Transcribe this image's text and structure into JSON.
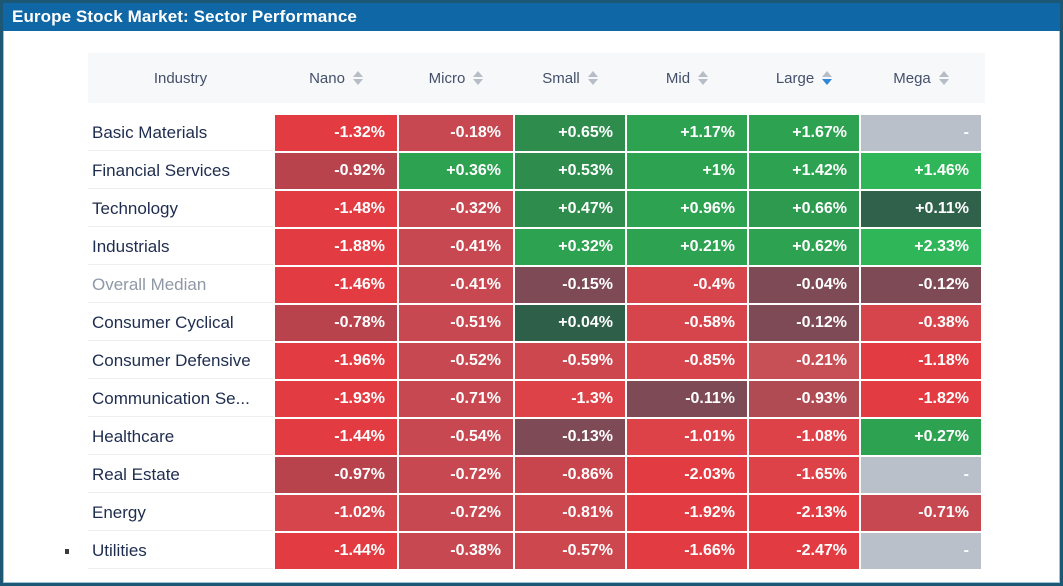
{
  "title": "Europe Stock Market: Sector Performance",
  "table": {
    "industry_header": "Industry",
    "columns": [
      {
        "label": "Nano",
        "sort": "none"
      },
      {
        "label": "Micro",
        "sort": "none"
      },
      {
        "label": "Small",
        "sort": "none"
      },
      {
        "label": "Mid",
        "sort": "none"
      },
      {
        "label": "Large",
        "sort": "desc"
      },
      {
        "label": "Mega",
        "sort": "none"
      }
    ],
    "rows": [
      {
        "industry": "Basic Materials",
        "muted": false,
        "cells": [
          {
            "v": "-1.32%",
            "c": "#e23c42"
          },
          {
            "v": "-0.18%",
            "c": "#c74850"
          },
          {
            "v": "+0.65%",
            "c": "#2e8c4d"
          },
          {
            "v": "+1.17%",
            "c": "#2da251"
          },
          {
            "v": "+1.67%",
            "c": "#2da251"
          },
          {
            "v": "-",
            "c": "#b9c0ca"
          }
        ]
      },
      {
        "industry": "Financial Services",
        "muted": false,
        "cells": [
          {
            "v": "-0.92%",
            "c": "#b8434c"
          },
          {
            "v": "+0.36%",
            "c": "#2da251"
          },
          {
            "v": "+0.53%",
            "c": "#2e8c4d"
          },
          {
            "v": "+1%",
            "c": "#2da251"
          },
          {
            "v": "+1.42%",
            "c": "#2da251"
          },
          {
            "v": "+1.46%",
            "c": "#2eb658"
          }
        ]
      },
      {
        "industry": "Technology",
        "muted": false,
        "cells": [
          {
            "v": "-1.48%",
            "c": "#e23c42"
          },
          {
            "v": "-0.32%",
            "c": "#c74850"
          },
          {
            "v": "+0.47%",
            "c": "#2e8c4d"
          },
          {
            "v": "+0.96%",
            "c": "#2da251"
          },
          {
            "v": "+0.66%",
            "c": "#2d9a4f"
          },
          {
            "v": "+0.11%",
            "c": "#30614b"
          }
        ]
      },
      {
        "industry": "Industrials",
        "muted": false,
        "cells": [
          {
            "v": "-1.88%",
            "c": "#e23c42"
          },
          {
            "v": "-0.41%",
            "c": "#c74850"
          },
          {
            "v": "+0.32%",
            "c": "#2da251"
          },
          {
            "v": "+0.21%",
            "c": "#2da251"
          },
          {
            "v": "+0.62%",
            "c": "#2da251"
          },
          {
            "v": "+2.33%",
            "c": "#2eb658"
          }
        ]
      },
      {
        "industry": "Overall Median",
        "muted": true,
        "cells": [
          {
            "v": "-1.46%",
            "c": "#e23c42"
          },
          {
            "v": "-0.41%",
            "c": "#c74850"
          },
          {
            "v": "-0.15%",
            "c": "#7e4a55"
          },
          {
            "v": "-0.4%",
            "c": "#d6454c"
          },
          {
            "v": "-0.04%",
            "c": "#7e4a55"
          },
          {
            "v": "-0.12%",
            "c": "#7e4a55"
          }
        ]
      },
      {
        "industry": "Consumer Cyclical",
        "muted": false,
        "cells": [
          {
            "v": "-0.78%",
            "c": "#b8434c"
          },
          {
            "v": "-0.51%",
            "c": "#c74850"
          },
          {
            "v": "+0.04%",
            "c": "#2e6049"
          },
          {
            "v": "-0.58%",
            "c": "#d6454c"
          },
          {
            "v": "-0.12%",
            "c": "#7e4a55"
          },
          {
            "v": "-0.38%",
            "c": "#d6454c"
          }
        ]
      },
      {
        "industry": "Consumer Defensive",
        "muted": false,
        "cells": [
          {
            "v": "-1.96%",
            "c": "#e23c42"
          },
          {
            "v": "-0.52%",
            "c": "#c74850"
          },
          {
            "v": "-0.59%",
            "c": "#cd474e"
          },
          {
            "v": "-0.85%",
            "c": "#d6454c"
          },
          {
            "v": "-0.21%",
            "c": "#c74f56"
          },
          {
            "v": "-1.18%",
            "c": "#e23c42"
          }
        ]
      },
      {
        "industry": "Communication Se...",
        "muted": false,
        "cells": [
          {
            "v": "-1.93%",
            "c": "#e23c42"
          },
          {
            "v": "-0.71%",
            "c": "#c74850"
          },
          {
            "v": "-1.3%",
            "c": "#dd4248"
          },
          {
            "v": "-0.11%",
            "c": "#7e4a55"
          },
          {
            "v": "-0.93%",
            "c": "#b04a53"
          },
          {
            "v": "-1.82%",
            "c": "#e23c42"
          }
        ]
      },
      {
        "industry": "Healthcare",
        "muted": false,
        "cells": [
          {
            "v": "-1.44%",
            "c": "#e23c42"
          },
          {
            "v": "-0.54%",
            "c": "#c74850"
          },
          {
            "v": "-0.13%",
            "c": "#7e4a55"
          },
          {
            "v": "-1.01%",
            "c": "#dd4248"
          },
          {
            "v": "-1.08%",
            "c": "#dd4248"
          },
          {
            "v": "+0.27%",
            "c": "#2da251"
          }
        ]
      },
      {
        "industry": "Real Estate",
        "muted": false,
        "cells": [
          {
            "v": "-0.97%",
            "c": "#b8434c"
          },
          {
            "v": "-0.72%",
            "c": "#c74850"
          },
          {
            "v": "-0.86%",
            "c": "#c9454d"
          },
          {
            "v": "-2.03%",
            "c": "#e23c42"
          },
          {
            "v": "-1.65%",
            "c": "#dd4248"
          },
          {
            "v": "-",
            "c": "#b9c0ca"
          }
        ]
      },
      {
        "industry": "Energy",
        "muted": false,
        "cells": [
          {
            "v": "-1.02%",
            "c": "#d6454c"
          },
          {
            "v": "-0.72%",
            "c": "#c74850"
          },
          {
            "v": "-0.81%",
            "c": "#cd474e"
          },
          {
            "v": "-1.92%",
            "c": "#e23c42"
          },
          {
            "v": "-2.13%",
            "c": "#e23c42"
          },
          {
            "v": "-0.71%",
            "c": "#c74850"
          }
        ]
      },
      {
        "industry": "Utilities",
        "muted": false,
        "cells": [
          {
            "v": "-1.44%",
            "c": "#e23c42"
          },
          {
            "v": "-0.38%",
            "c": "#c74850"
          },
          {
            "v": "-0.57%",
            "c": "#cd474e"
          },
          {
            "v": "-1.66%",
            "c": "#e23c42"
          },
          {
            "v": "-2.47%",
            "c": "#e23c42"
          },
          {
            "v": "-",
            "c": "#b9c0ca"
          }
        ]
      }
    ]
  },
  "colors": {
    "title_bar": "#0f67a6",
    "negative_strong": "#e23c42",
    "negative_mild": "#7e4a55",
    "positive_strong": "#2eb658",
    "positive_mild": "#2e6049",
    "no_data": "#b9c0ca",
    "sort_active": "#2f86d6"
  }
}
